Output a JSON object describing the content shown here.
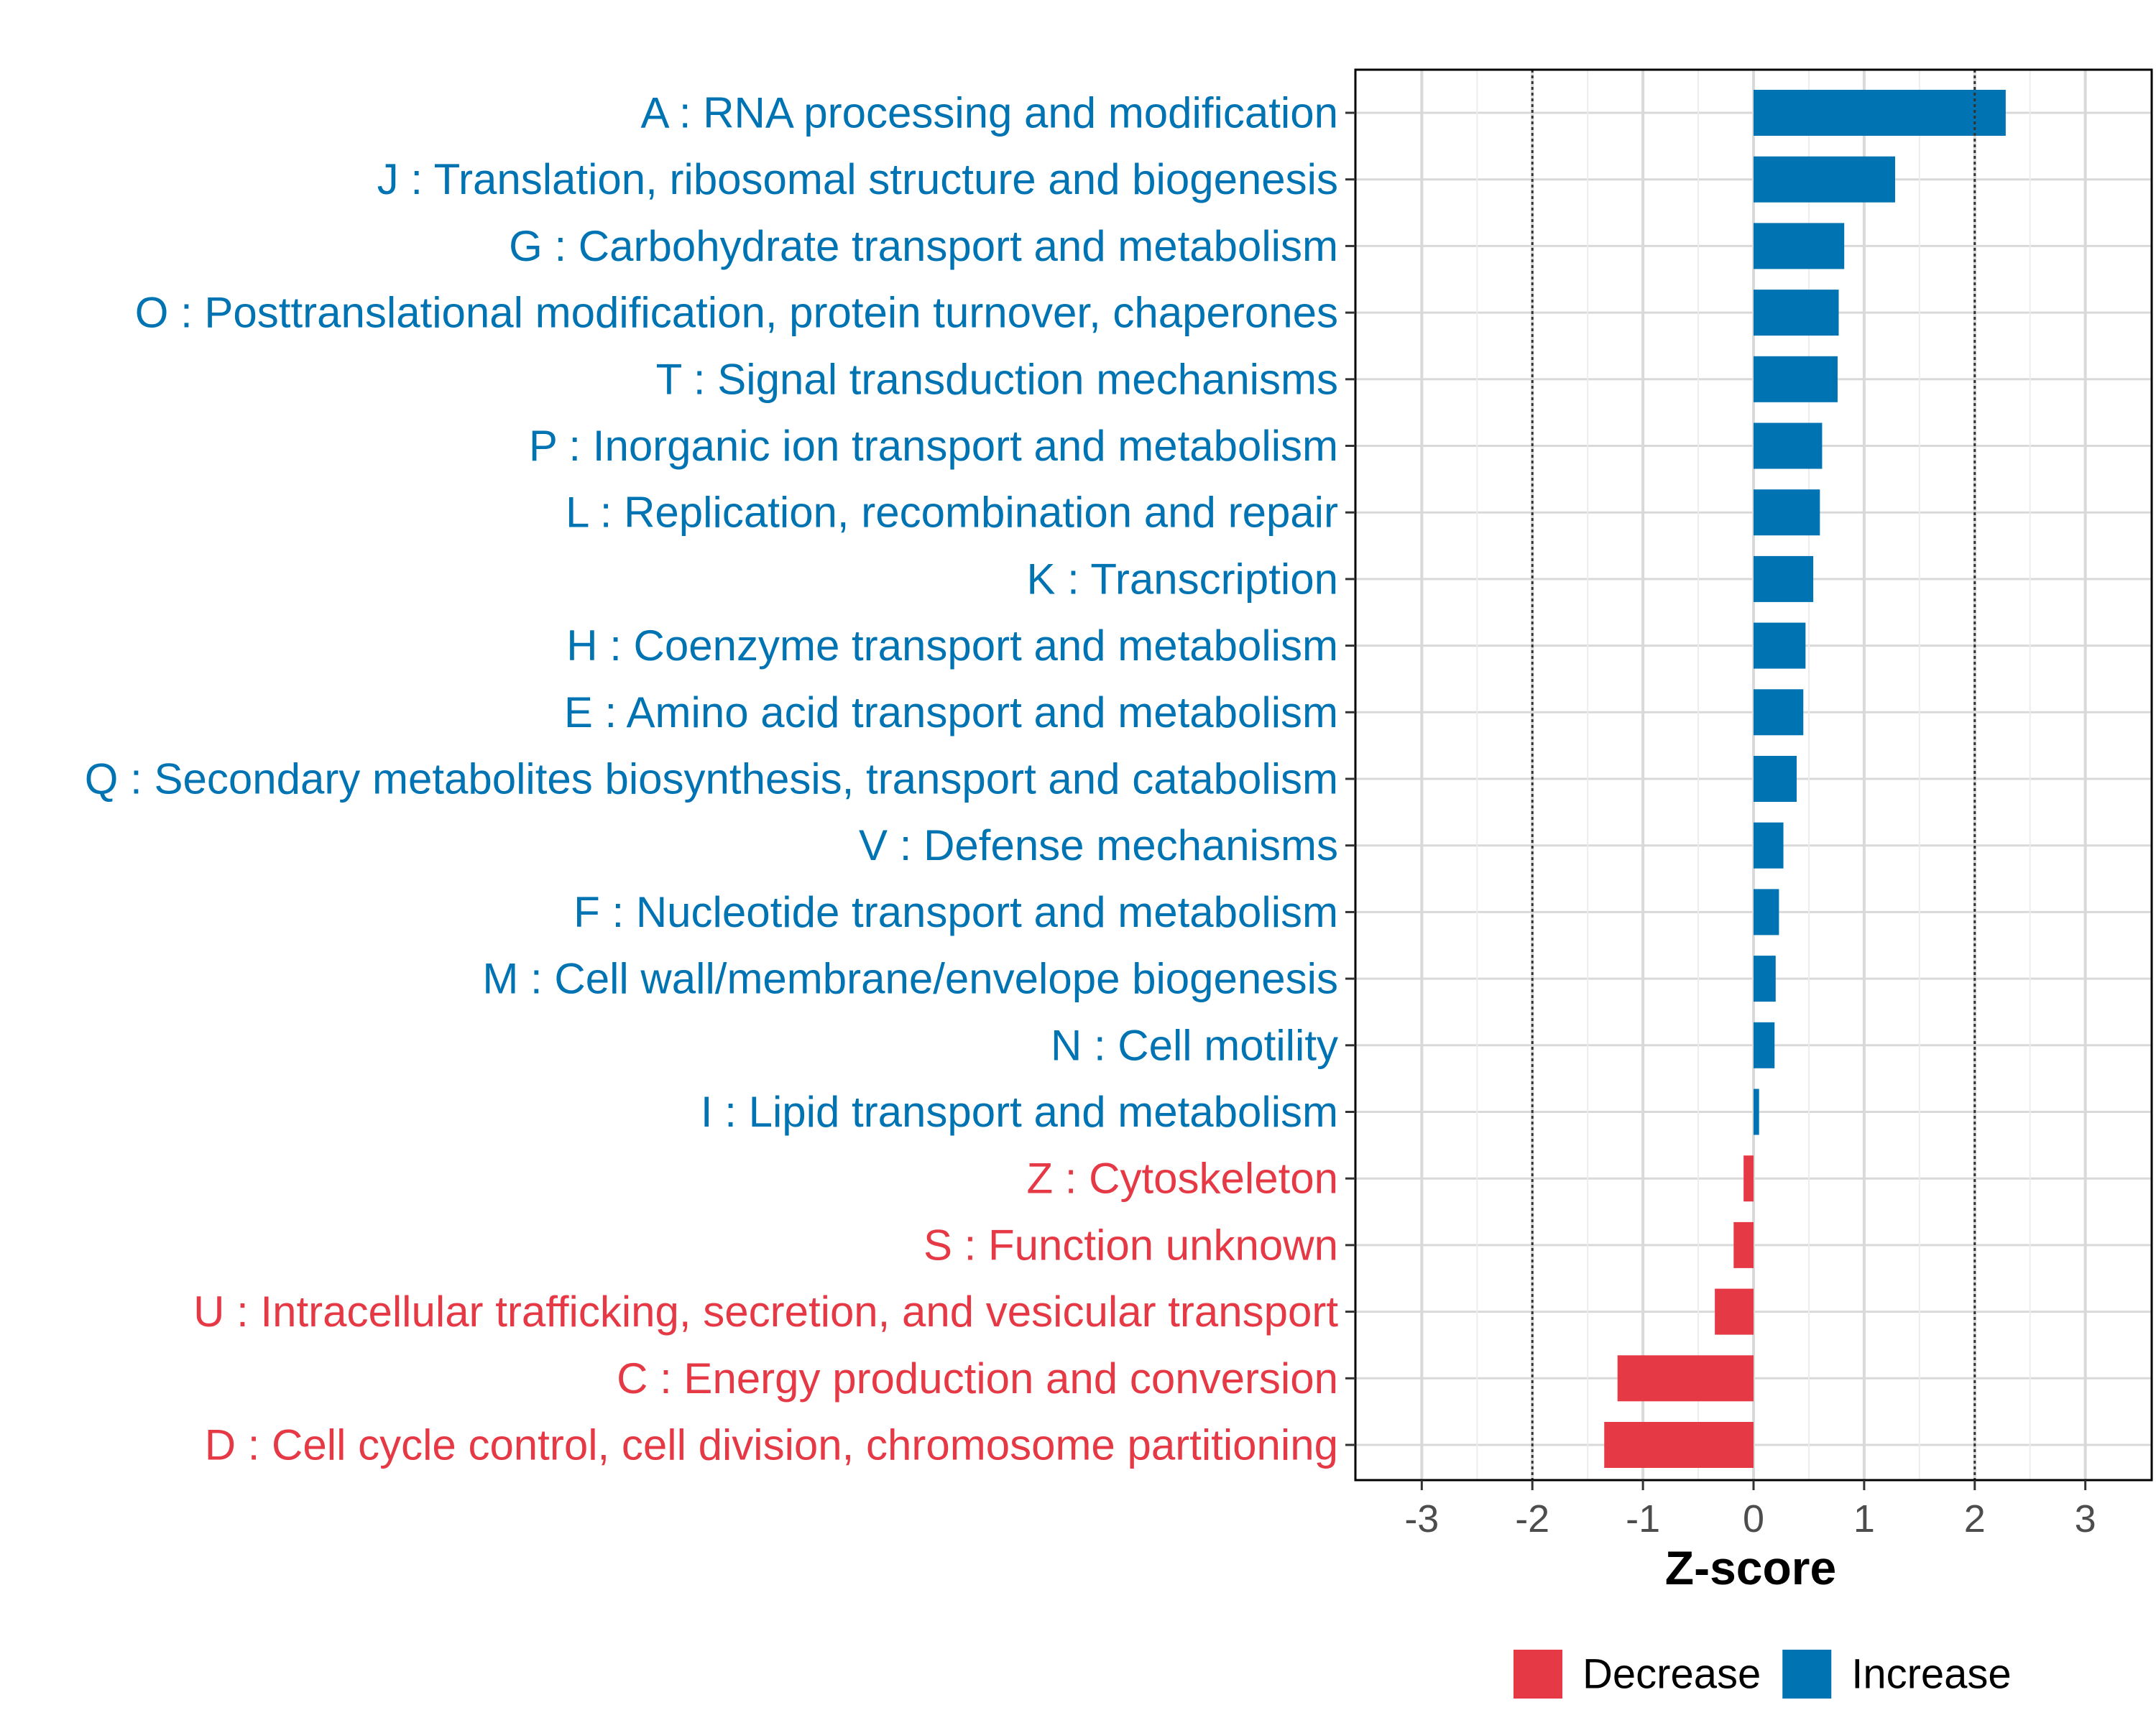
{
  "chart_data": {
    "type": "bar",
    "orientation": "horizontal",
    "xlabel": "Z-score",
    "ylabel": "",
    "xlim": [
      -3.6,
      3.6
    ],
    "x_ticks": [
      -3,
      -2,
      -1,
      0,
      1,
      2,
      3
    ],
    "x_tick_labels": [
      "-3",
      "-2",
      "-1",
      "0",
      "1",
      "2",
      "3"
    ],
    "reference_lines": [
      -2,
      2
    ],
    "grid": true,
    "legend_position": "bottom",
    "categories": [
      "A : RNA processing and modification",
      "J : Translation, ribosomal structure and biogenesis",
      "G : Carbohydrate transport and metabolism",
      "O : Posttranslational modification, protein turnover, chaperones",
      "T : Signal transduction mechanisms",
      "P : Inorganic ion transport and metabolism",
      "L : Replication, recombination and repair",
      "K : Transcription",
      "H : Coenzyme transport and metabolism",
      "E : Amino acid transport and metabolism",
      "Q : Secondary metabolites biosynthesis, transport and catabolism",
      "V : Defense mechanisms",
      "F : Nucleotide transport and metabolism",
      "M : Cell wall/membrane/envelope biogenesis",
      "N : Cell motility",
      "I : Lipid transport and metabolism",
      "Z : Cytoskeleton",
      "S : Function unknown",
      "U : Intracellular trafficking, secretion, and vesicular transport",
      "C : Energy production and conversion",
      "D : Cell cycle control, cell division, chromosome partitioning"
    ],
    "values": [
      2.28,
      1.28,
      0.82,
      0.77,
      0.76,
      0.62,
      0.6,
      0.54,
      0.47,
      0.45,
      0.39,
      0.27,
      0.23,
      0.2,
      0.19,
      0.05,
      -0.09,
      -0.18,
      -0.35,
      -1.23,
      -1.35
    ],
    "groups": [
      "Increase",
      "Increase",
      "Increase",
      "Increase",
      "Increase",
      "Increase",
      "Increase",
      "Increase",
      "Increase",
      "Increase",
      "Increase",
      "Increase",
      "Increase",
      "Increase",
      "Increase",
      "Increase",
      "Decrease",
      "Decrease",
      "Decrease",
      "Decrease",
      "Decrease"
    ],
    "legend": [
      {
        "name": "Decrease",
        "color": "#e63946"
      },
      {
        "name": "Increase",
        "color": "#0073b3"
      }
    ]
  }
}
